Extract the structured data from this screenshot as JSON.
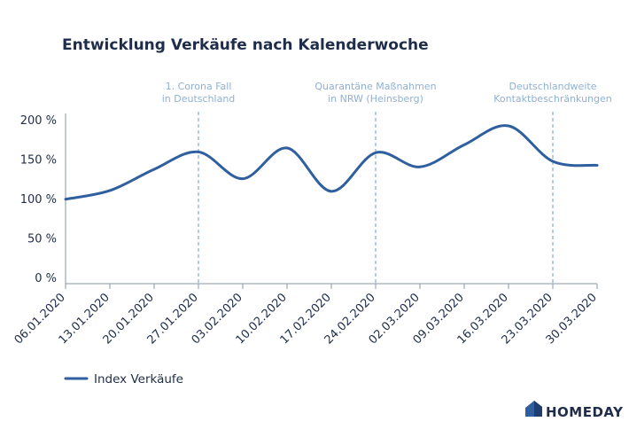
{
  "chart_data": {
    "type": "line",
    "title": "Entwicklung Verkäufe nach Kalenderwoche",
    "x": [
      "06.01.2020",
      "13.01.2020",
      "20.01.2020",
      "27.01.2020",
      "03.02.2020",
      "10.02.2020",
      "17.02.2020",
      "24.02.2020",
      "02.03.2020",
      "09.03.2020",
      "16.03.2020",
      "23.03.2020",
      "30.03.2020"
    ],
    "y_ticks": [
      "0 %",
      "50 %",
      "100 %",
      "150 %",
      "200 %"
    ],
    "ylim": [
      0,
      200
    ],
    "grid": false,
    "series": [
      {
        "name": "Index Verkäufe",
        "color": "#2f5f9e",
        "points": [
          {
            "x": "06.01.2020",
            "y": 107
          },
          {
            "x": "13.01.2020",
            "y": 118
          },
          {
            "x": "20.01.2020",
            "y": 145
          },
          {
            "x": "27.01.2020",
            "y": 167
          },
          {
            "x": "03.02.2020",
            "y": 133
          },
          {
            "x": "10.02.2020",
            "y": 172
          },
          {
            "x": "17.02.2020",
            "y": 117
          },
          {
            "x": "24.02.2020",
            "y": 166
          },
          {
            "x": "02.03.2020",
            "y": 148
          },
          {
            "x": "09.03.2020",
            "y": 176
          },
          {
            "x": "16.03.2020",
            "y": 200
          },
          {
            "x": "23.03.2020",
            "y": 155
          },
          {
            "x": "30.03.2020",
            "y": 150
          }
        ]
      }
    ],
    "annotations": [
      {
        "x": "27.01.2020",
        "lines": [
          "1. Corona Fall",
          "in Deutschland"
        ]
      },
      {
        "x": "24.02.2020",
        "lines": [
          "Quarantäne Maßnahmen",
          "in NRW (Heinsberg)"
        ]
      },
      {
        "x": "23.03.2020",
        "lines": [
          "Deutschlandweite",
          "Kontaktbeschränkungen"
        ]
      }
    ],
    "legend": {
      "position": "bottom-left"
    }
  },
  "brand": {
    "name": "HOMEDAY",
    "logo_icon": "house-icon"
  },
  "colors": {
    "line": "#2f5f9e",
    "annotation": "#8fb0d6",
    "axis": "#8a94a6",
    "text": "#1f2d4a"
  }
}
